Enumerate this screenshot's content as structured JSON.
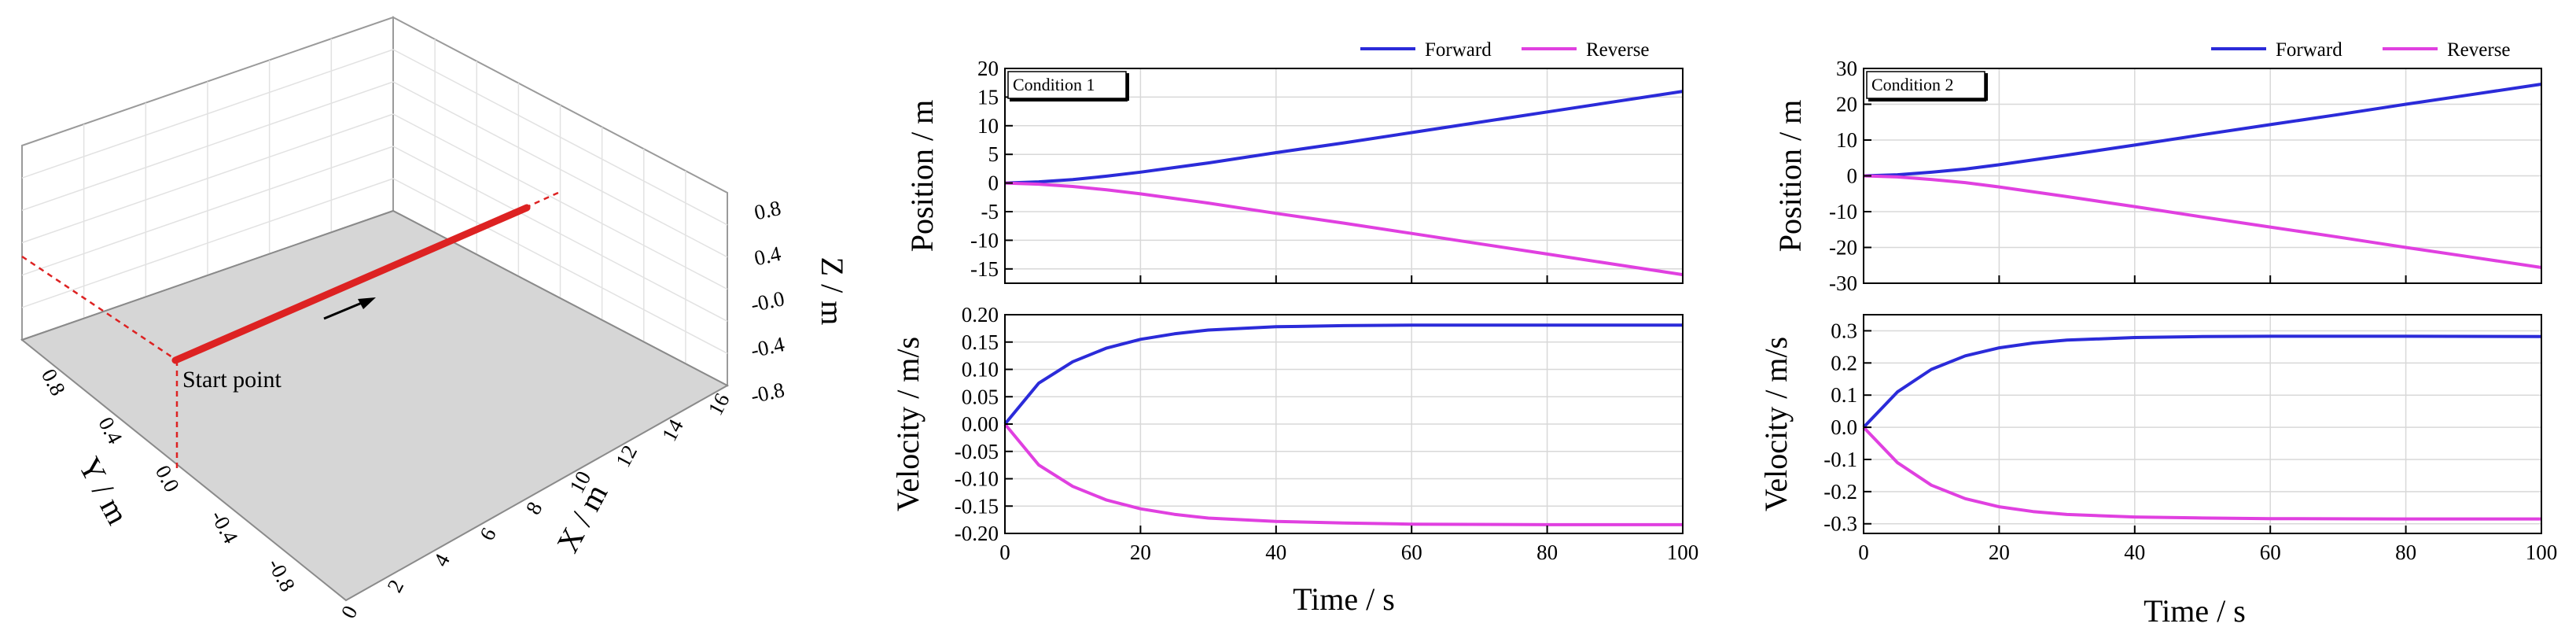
{
  "colors": {
    "forward": "#2b2bd9",
    "reverse": "#e040e0",
    "trajectory": "#dd2222",
    "floor": "#d6d6d6",
    "grid": "#dedede"
  },
  "legend": {
    "forward": "Forward",
    "reverse": "Reverse"
  },
  "trajectory3d": {
    "start_label": "Start point",
    "x_axis_label": "X / m",
    "y_axis_label": "Y / m",
    "z_axis_label": "Z / m",
    "x_ticks": [
      "0",
      "2",
      "4",
      "6",
      "8",
      "10",
      "12",
      "14",
      "16"
    ],
    "y_ticks": [
      "-0.8",
      "-0.4",
      "0.0",
      "0.4",
      "0.8"
    ],
    "z_ticks": [
      "-0.8",
      "-0.4",
      "-0.0",
      "0.4",
      "0.8"
    ],
    "direction_icon": "arrow-right-icon"
  },
  "chart_data": [
    {
      "type": "line",
      "condition": "Condition 1",
      "xlabel": "Time / s",
      "xlim": [
        0,
        100
      ],
      "x_ticks": [
        0,
        20,
        40,
        60,
        80,
        100
      ],
      "position": {
        "ylabel": "Position / m",
        "ylim": [
          -17.5,
          20
        ],
        "y_ticks": [
          20,
          15,
          10,
          5,
          0,
          -5,
          -10,
          -15
        ],
        "series": [
          {
            "name": "Forward",
            "x": [
              0,
              5,
              10,
              15,
              20,
              30,
              40,
              50,
              60,
              70,
              80,
              90,
              100
            ],
            "values": [
              0,
              0.2,
              0.6,
              1.2,
              1.9,
              3.5,
              5.3,
              7.0,
              8.8,
              10.6,
              12.4,
              14.2,
              16.0
            ]
          },
          {
            "name": "Reverse",
            "x": [
              0,
              5,
              10,
              15,
              20,
              30,
              40,
              50,
              60,
              70,
              80,
              90,
              100
            ],
            "values": [
              0,
              -0.2,
              -0.6,
              -1.2,
              -1.9,
              -3.5,
              -5.3,
              -7.0,
              -8.8,
              -10.6,
              -12.4,
              -14.2,
              -16.0
            ]
          }
        ]
      },
      "velocity": {
        "ylabel": "Velocity / m/s",
        "ylim": [
          -0.2,
          0.2
        ],
        "y_ticks": [
          "0.20",
          "0.15",
          "0.10",
          "0.05",
          "0.00",
          "-0.05",
          "-0.10",
          "-0.15",
          "-0.20"
        ],
        "series": [
          {
            "name": "Forward",
            "x": [
              0,
              5,
              10,
              15,
              20,
              25,
              30,
              40,
              50,
              60,
              80,
              100
            ],
            "values": [
              0,
              0.075,
              0.114,
              0.139,
              0.155,
              0.165,
              0.172,
              0.178,
              0.18,
              0.181,
              0.181,
              0.181
            ]
          },
          {
            "name": "Reverse",
            "x": [
              0,
              5,
              10,
              15,
              20,
              25,
              30,
              40,
              50,
              60,
              80,
              100
            ],
            "values": [
              0,
              -0.075,
              -0.114,
              -0.139,
              -0.155,
              -0.165,
              -0.172,
              -0.178,
              -0.181,
              -0.183,
              -0.184,
              -0.184
            ]
          }
        ]
      }
    },
    {
      "type": "line",
      "condition": "Condition 2",
      "xlabel": "Time / s",
      "xlim": [
        0,
        100
      ],
      "x_ticks": [
        0,
        20,
        40,
        60,
        80,
        100
      ],
      "position": {
        "ylabel": "Position / m",
        "ylim": [
          -30,
          30
        ],
        "y_ticks": [
          30,
          20,
          10,
          0,
          -10,
          -20,
          -30
        ],
        "series": [
          {
            "name": "Forward",
            "x": [
              0,
              5,
              10,
              15,
              20,
              30,
              40,
              50,
              60,
              70,
              80,
              90,
              100
            ],
            "values": [
              0,
              0.3,
              1.0,
              1.9,
              3.1,
              5.8,
              8.6,
              11.5,
              14.3,
              17.1,
              20.0,
              22.8,
              25.6
            ]
          },
          {
            "name": "Reverse",
            "x": [
              0,
              5,
              10,
              15,
              20,
              30,
              40,
              50,
              60,
              70,
              80,
              90,
              100
            ],
            "values": [
              0,
              -0.3,
              -1.0,
              -1.9,
              -3.1,
              -5.8,
              -8.6,
              -11.5,
              -14.3,
              -17.1,
              -20.0,
              -22.8,
              -25.6
            ]
          }
        ]
      },
      "velocity": {
        "ylabel": "Velocity / m/s",
        "ylim": [
          -0.33,
          0.35
        ],
        "y_ticks": [
          "0.3",
          "0.2",
          "0.1",
          "0.0",
          "-0.1",
          "-0.2",
          "-0.3"
        ],
        "series": [
          {
            "name": "Forward",
            "x": [
              0,
              5,
              10,
              15,
              20,
              25,
              30,
              40,
              50,
              60,
              80,
              100
            ],
            "values": [
              0,
              0.11,
              0.18,
              0.222,
              0.247,
              0.262,
              0.271,
              0.279,
              0.282,
              0.283,
              0.283,
              0.282
            ]
          },
          {
            "name": "Reverse",
            "x": [
              0,
              5,
              10,
              15,
              20,
              25,
              30,
              40,
              50,
              60,
              80,
              100
            ],
            "values": [
              0,
              -0.11,
              -0.18,
              -0.222,
              -0.247,
              -0.262,
              -0.271,
              -0.279,
              -0.282,
              -0.284,
              -0.285,
              -0.285
            ]
          }
        ]
      }
    }
  ]
}
